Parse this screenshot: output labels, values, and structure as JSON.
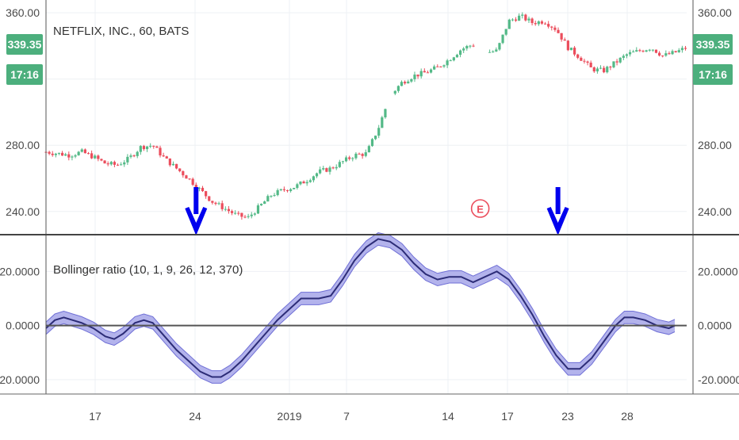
{
  "price_pane": {
    "title": "NETFLIX, INC., 60, BATS",
    "last_price_badge": "339.35",
    "countdown_badge": "17:16",
    "earnings_marker": "E"
  },
  "indicator_pane": {
    "title": "Bollinger ratio (10, 1, 9, 26, 12, 370)"
  },
  "colors": {
    "up": "#53b987",
    "down": "#eb4d5c",
    "badge": "#4caf7d",
    "band_fill": "#9a9ae6",
    "band_edge": "#6f6fd6",
    "ratio_line": "#2c2c77",
    "arrow": "#0000ee",
    "grid": "#eef0f4",
    "axis_text": "#4a4a4a"
  },
  "chart_data": [
    {
      "type": "candlestick",
      "symbol": "NETFLIX, INC., 60, BATS",
      "y_ticks": [
        "360.00",
        "280.00",
        "240.00"
      ],
      "ylim": [
        226,
        362
      ],
      "x_ticks": [
        "17",
        "24",
        "2019",
        "7",
        "14",
        "17",
        "23",
        "28"
      ],
      "last_price": 339.35,
      "close_path": [
        [
          0,
          276
        ],
        [
          2,
          275
        ],
        [
          4,
          274
        ],
        [
          6,
          276
        ],
        [
          8,
          273
        ],
        [
          10,
          269
        ],
        [
          12,
          268
        ],
        [
          14,
          272
        ],
        [
          16,
          279
        ],
        [
          18,
          280
        ],
        [
          20,
          272
        ],
        [
          22,
          266
        ],
        [
          24,
          260
        ],
        [
          26,
          253
        ],
        [
          28,
          246
        ],
        [
          30,
          242
        ],
        [
          32,
          238
        ],
        [
          34,
          236
        ],
        [
          36,
          243
        ],
        [
          38,
          250
        ],
        [
          40,
          253
        ],
        [
          42,
          255
        ],
        [
          44,
          259
        ],
        [
          46,
          264
        ],
        [
          48,
          266
        ],
        [
          50,
          270
        ],
        [
          52,
          274
        ],
        [
          54,
          275
        ],
        [
          56,
          290
        ],
        [
          58,
          310
        ],
        [
          60,
          318
        ],
        [
          62,
          322
        ],
        [
          64,
          324
        ],
        [
          66,
          327
        ],
        [
          68,
          332
        ],
        [
          70,
          338
        ],
        [
          72,
          341
        ],
        [
          74,
          336
        ],
        [
          76,
          337
        ],
        [
          78,
          355
        ],
        [
          80,
          358
        ],
        [
          82,
          354
        ],
        [
          84,
          355
        ],
        [
          86,
          350
        ],
        [
          88,
          339
        ],
        [
          90,
          333
        ],
        [
          92,
          326
        ],
        [
          94,
          325
        ],
        [
          96,
          330
        ],
        [
          98,
          335
        ],
        [
          100,
          337
        ],
        [
          102,
          339
        ],
        [
          104,
          334
        ],
        [
          106,
          336
        ],
        [
          108,
          339
        ]
      ],
      "down_arrows_at": [
        25.3,
        86.3
      ],
      "earnings_at": 73.2
    },
    {
      "type": "line_with_band",
      "name": "Bollinger ratio (10, 1, 9, 26, 12, 370)",
      "y_ticks": [
        "20.0000",
        "0.0000",
        "-20.0000"
      ],
      "ylim": [
        -25,
        33
      ],
      "reference_line": 0,
      "last_value": 0,
      "series": [
        [
          0,
          -1
        ],
        [
          1.5,
          2
        ],
        [
          3,
          3
        ],
        [
          4.5,
          2
        ],
        [
          6,
          1
        ],
        [
          8,
          -1
        ],
        [
          10,
          -4
        ],
        [
          11.5,
          -5
        ],
        [
          13,
          -3
        ],
        [
          15,
          1
        ],
        [
          16.5,
          2
        ],
        [
          18,
          1
        ],
        [
          20,
          -4
        ],
        [
          22,
          -9
        ],
        [
          24,
          -13
        ],
        [
          26,
          -17
        ],
        [
          28,
          -19
        ],
        [
          29.5,
          -19
        ],
        [
          31,
          -17
        ],
        [
          33,
          -13
        ],
        [
          35,
          -8
        ],
        [
          37,
          -3
        ],
        [
          39,
          2
        ],
        [
          41,
          6
        ],
        [
          43,
          10
        ],
        [
          44,
          10
        ],
        [
          46,
          10
        ],
        [
          48,
          11
        ],
        [
          50,
          17
        ],
        [
          52,
          24
        ],
        [
          54,
          29
        ],
        [
          56,
          32
        ],
        [
          58,
          31
        ],
        [
          60,
          28
        ],
        [
          62,
          23
        ],
        [
          64,
          19
        ],
        [
          66,
          17
        ],
        [
          68,
          18
        ],
        [
          70,
          18
        ],
        [
          72,
          16
        ],
        [
          74,
          18
        ],
        [
          76,
          20
        ],
        [
          78,
          17
        ],
        [
          80,
          11
        ],
        [
          82,
          4
        ],
        [
          84,
          -4
        ],
        [
          86,
          -11
        ],
        [
          88,
          -16
        ],
        [
          90,
          -16
        ],
        [
          92,
          -12
        ],
        [
          94,
          -6
        ],
        [
          96,
          0
        ],
        [
          97.5,
          3
        ],
        [
          99,
          3
        ],
        [
          101,
          2
        ],
        [
          103,
          0
        ],
        [
          105,
          -1
        ],
        [
          106,
          0
        ]
      ],
      "band_halfwidth": 2.3,
      "down_arrows_at": [
        25.5,
        87.8
      ]
    }
  ]
}
